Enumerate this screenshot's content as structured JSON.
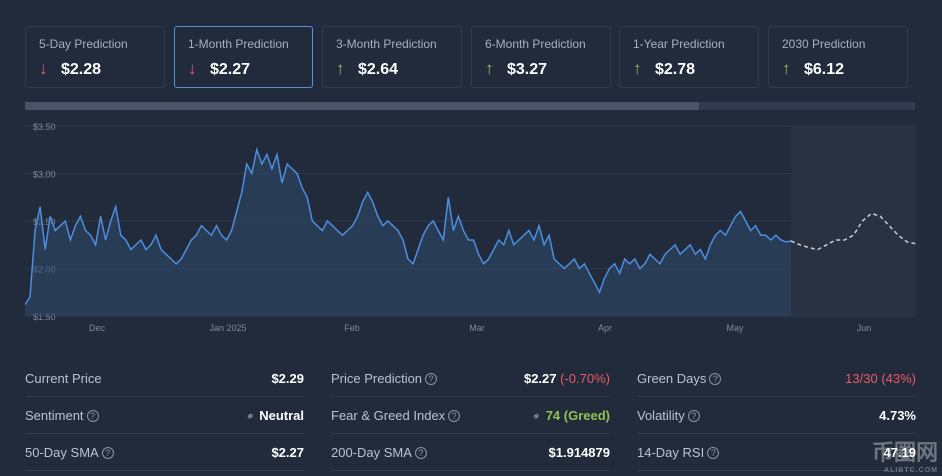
{
  "cards": [
    {
      "label": "5-Day Prediction",
      "value": "$2.28",
      "direction": "down",
      "arrow": "↓",
      "active": false
    },
    {
      "label": "1-Month Prediction",
      "value": "$2.27",
      "direction": "down",
      "arrow": "↓",
      "active": true
    },
    {
      "label": "3-Month Prediction",
      "value": "$2.64",
      "direction": "up",
      "arrow": "↑",
      "active": false
    },
    {
      "label": "6-Month Prediction",
      "value": "$3.27",
      "direction": "up",
      "arrow": "↑",
      "active": false
    },
    {
      "label": "1-Year Prediction",
      "value": "$2.78",
      "direction": "up",
      "arrow": "↑",
      "active": false
    },
    {
      "label": "2030 Prediction",
      "value": "$6.12",
      "direction": "up",
      "arrow": "↑",
      "active": false
    }
  ],
  "colors": {
    "accent": "#5b8fd8",
    "line": "#4d8ee0",
    "down": "#ea5a66",
    "up": "#8fc251",
    "forecast": "#c9cfd8"
  },
  "chart_data": {
    "type": "line",
    "y_ticks": [
      "$3.50",
      "$3.00",
      "$2.50",
      "$2.00",
      "$1.50"
    ],
    "ylim": [
      1.5,
      3.5
    ],
    "x_ticks": [
      "Dec",
      "Jan 2025",
      "Feb",
      "Mar",
      "Apr",
      "May",
      "Jun"
    ],
    "grid": true,
    "series": [
      {
        "values": [
          1.62,
          1.7,
          2.4,
          2.65,
          2.2,
          2.55,
          2.4,
          2.45,
          2.5,
          2.3,
          2.45,
          2.55,
          2.4,
          2.35,
          2.25,
          2.55,
          2.3,
          2.5,
          2.65,
          2.35,
          2.3,
          2.2,
          2.25,
          2.3,
          2.2,
          2.25,
          2.35,
          2.2,
          2.15,
          2.1,
          2.05,
          2.1,
          2.2,
          2.3,
          2.35,
          2.45,
          2.4,
          2.35,
          2.45,
          2.35,
          2.3,
          2.4,
          2.6,
          2.8,
          3.1,
          3.0,
          3.25,
          3.1,
          3.2,
          3.05,
          3.2,
          2.9,
          3.1,
          3.05,
          3.0,
          2.85,
          2.75,
          2.5,
          2.45,
          2.4,
          2.5,
          2.45,
          2.4,
          2.35,
          2.4,
          2.45,
          2.55,
          2.7,
          2.8,
          2.7,
          2.55,
          2.45,
          2.5,
          2.45,
          2.4,
          2.3,
          2.1,
          2.05,
          2.2,
          2.35,
          2.45,
          2.5,
          2.4,
          2.3,
          2.75,
          2.4,
          2.55,
          2.4,
          2.3,
          2.3,
          2.15,
          2.05,
          2.1,
          2.2,
          2.3,
          2.25,
          2.4,
          2.25,
          2.3,
          2.35,
          2.4,
          2.3,
          2.45,
          2.25,
          2.35,
          2.1,
          2.05,
          2.0,
          2.05,
          2.1,
          2.0,
          2.05,
          1.95,
          1.85,
          1.75,
          1.9,
          2.0,
          2.05,
          1.95,
          2.1,
          2.05,
          2.1,
          2.0,
          2.05,
          2.15,
          2.1,
          2.05,
          2.15,
          2.2,
          2.25,
          2.15,
          2.2,
          2.25,
          2.15,
          2.2,
          2.1,
          2.25,
          2.35,
          2.4,
          2.35,
          2.45,
          2.55,
          2.6,
          2.5,
          2.4,
          2.45,
          2.35,
          2.35,
          2.3,
          2.35,
          2.3,
          2.28,
          2.29
        ]
      },
      {
        "values": [
          2.29,
          2.25,
          2.22,
          2.2,
          2.25,
          2.3,
          2.3,
          2.35,
          2.5,
          2.58,
          2.55,
          2.45,
          2.35,
          2.28,
          2.26
        ]
      }
    ]
  },
  "stats": {
    "col1": [
      {
        "key": "Current Price",
        "help": false,
        "value": "$2.29"
      },
      {
        "key": "Sentiment",
        "help": true,
        "value": "Neutral",
        "link": true
      },
      {
        "key": "50-Day SMA",
        "help": true,
        "value": "$2.27"
      }
    ],
    "col2": [
      {
        "key": "Price Prediction",
        "help": true,
        "value": "$2.27",
        "change": "(-0.70%)"
      },
      {
        "key": "Fear & Greed Index",
        "help": true,
        "value": "74 (Greed)",
        "link": true
      },
      {
        "key": "200-Day SMA",
        "help": true,
        "value": "$1.914879"
      }
    ],
    "col3": [
      {
        "key": "Green Days",
        "help": true,
        "value": "13/30 (43%)"
      },
      {
        "key": "Volatility",
        "help": true,
        "value": "4.73%"
      },
      {
        "key": "14-Day RSI",
        "help": true,
        "value": "47.19"
      }
    ]
  },
  "watermark": {
    "main": "币圈网",
    "sub": "ALIBTC.COM"
  }
}
